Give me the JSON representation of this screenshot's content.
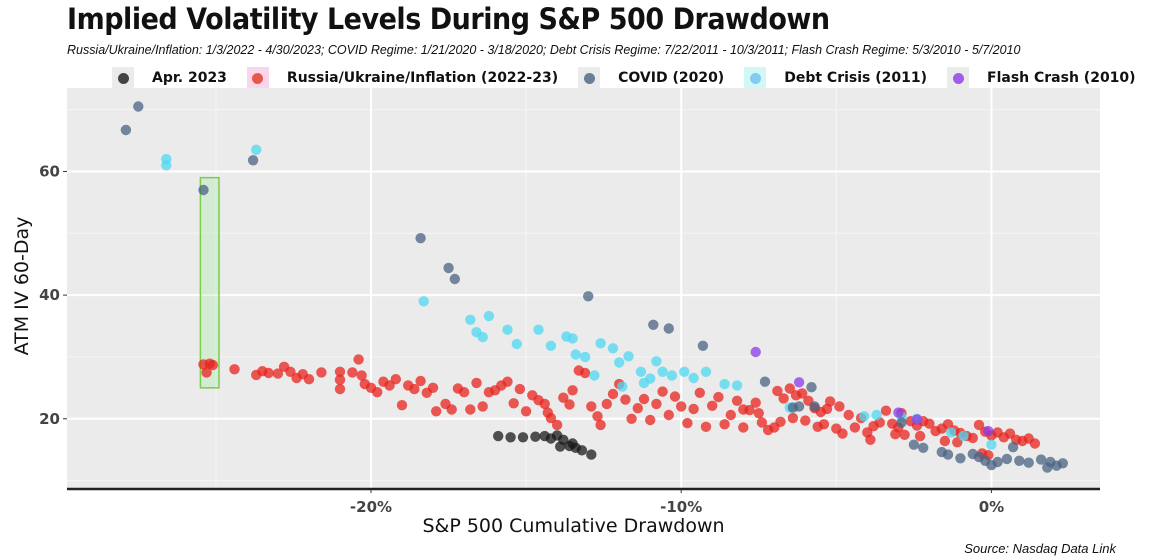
{
  "chart_data": {
    "type": "scatter",
    "title": "Implied Volatility Levels During S&P 500 Drawdown",
    "subtitle": "Russia/Ukraine/Inflation: 1/3/2022 - 4/30/2023; COVID Regime: 1/21/2020 - 3/18/2020; Debt Crisis Regime: 7/22/2011 - 10/3/2011; Flash Crash Regime: 5/3/2010 - 5/7/2010",
    "xlabel": "S&P 500 Cumulative Drawdown",
    "ylabel": "ATM IV 60-Day",
    "source": "Source: Nasdaq Data Link",
    "xlim": [
      -29.8,
      3.5
    ],
    "ylim": [
      8.8,
      73.5
    ],
    "x_ticks": [
      {
        "value": -20,
        "label": "-20%"
      },
      {
        "value": -10,
        "label": "-10%"
      },
      {
        "value": 0,
        "label": "0%"
      }
    ],
    "y_ticks": [
      {
        "value": 20,
        "label": "20"
      },
      {
        "value": 40,
        "label": "40"
      },
      {
        "value": 60,
        "label": "60"
      }
    ],
    "grid": true,
    "legend_position": "top",
    "highlight_box": {
      "x_range": [
        -25.5,
        -24.9
      ],
      "y_range": [
        25,
        59
      ],
      "color": "#7ccd4a"
    },
    "series": [
      {
        "name": "Russia/Ukraine/Inflation (2022-23)",
        "color": "#e8231e",
        "points": [
          [
            -25.4,
            28.8
          ],
          [
            -25.1,
            28.7
          ],
          [
            -25.3,
            27.5
          ],
          [
            -25.2,
            28.9
          ],
          [
            -24.4,
            28.0
          ],
          [
            -23.7,
            27.1
          ],
          [
            -23.5,
            27.7
          ],
          [
            -23.3,
            27.4
          ],
          [
            -23.0,
            27.3
          ],
          [
            -22.8,
            28.4
          ],
          [
            -22.6,
            27.6
          ],
          [
            -22.4,
            26.6
          ],
          [
            -22.2,
            27.2
          ],
          [
            -22.0,
            26.4
          ],
          [
            -21.6,
            27.5
          ],
          [
            -21.0,
            27.6
          ],
          [
            -21.0,
            26.3
          ],
          [
            -21.0,
            24.8
          ],
          [
            -20.6,
            27.5
          ],
          [
            -20.4,
            29.6
          ],
          [
            -20.3,
            27.0
          ],
          [
            -20.2,
            25.6
          ],
          [
            -20.0,
            25.0
          ],
          [
            -19.8,
            24.3
          ],
          [
            -19.6,
            26.0
          ],
          [
            -19.4,
            25.4
          ],
          [
            -19.2,
            26.4
          ],
          [
            -19.0,
            22.2
          ],
          [
            -18.8,
            25.4
          ],
          [
            -18.6,
            24.8
          ],
          [
            -18.4,
            26.1
          ],
          [
            -18.2,
            24.2
          ],
          [
            -18.0,
            25.0
          ],
          [
            -17.9,
            21.2
          ],
          [
            -17.6,
            22.4
          ],
          [
            -17.4,
            21.5
          ],
          [
            -17.2,
            24.9
          ],
          [
            -17.0,
            24.3
          ],
          [
            -16.8,
            21.5
          ],
          [
            -16.6,
            25.8
          ],
          [
            -16.4,
            22.0
          ],
          [
            -16.2,
            24.3
          ],
          [
            -16.0,
            24.6
          ],
          [
            -15.8,
            25.4
          ],
          [
            -15.6,
            26.0
          ],
          [
            -15.4,
            22.5
          ],
          [
            -15.2,
            24.8
          ],
          [
            -15.0,
            21.2
          ],
          [
            -14.8,
            23.8
          ],
          [
            -14.6,
            23.0
          ],
          [
            -14.4,
            22.4
          ],
          [
            -14.3,
            21.0
          ],
          [
            -14.2,
            20.1
          ],
          [
            -14.0,
            19.0
          ],
          [
            -13.8,
            23.4
          ],
          [
            -13.6,
            22.3
          ],
          [
            -13.5,
            24.6
          ],
          [
            -13.3,
            27.8
          ],
          [
            -13.1,
            27.4
          ],
          [
            -12.9,
            22.0
          ],
          [
            -12.7,
            20.4
          ],
          [
            -12.6,
            19.0
          ],
          [
            -12.4,
            22.4
          ],
          [
            -12.2,
            24.0
          ],
          [
            -12.0,
            25.6
          ],
          [
            -11.8,
            23.1
          ],
          [
            -11.6,
            20.0
          ],
          [
            -11.4,
            21.7
          ],
          [
            -11.2,
            23.2
          ],
          [
            -11.0,
            19.8
          ],
          [
            -10.8,
            22.4
          ],
          [
            -10.6,
            24.4
          ],
          [
            -10.4,
            20.6
          ],
          [
            -10.2,
            23.6
          ],
          [
            -10.0,
            22.0
          ],
          [
            -9.8,
            19.3
          ],
          [
            -9.6,
            21.6
          ],
          [
            -9.4,
            24.2
          ],
          [
            -9.2,
            18.7
          ],
          [
            -9.0,
            22.1
          ],
          [
            -8.8,
            23.5
          ],
          [
            -8.6,
            19.1
          ],
          [
            -8.4,
            20.6
          ],
          [
            -8.2,
            22.9
          ],
          [
            -8.0,
            18.6
          ],
          [
            -7.8,
            21.4
          ],
          [
            -7.6,
            22.6
          ],
          [
            -7.4,
            19.4
          ],
          [
            -7.2,
            18.2
          ],
          [
            -6.9,
            24.5
          ],
          [
            -6.7,
            23.3
          ],
          [
            -6.5,
            24.9
          ],
          [
            -6.3,
            23.8
          ],
          [
            -6.1,
            24.1
          ],
          [
            -5.9,
            22.9
          ],
          [
            -5.7,
            21.7
          ],
          [
            -5.5,
            21.1
          ],
          [
            -5.3,
            21.6
          ],
          [
            -5.2,
            22.8
          ],
          [
            -5.0,
            18.4
          ],
          [
            -4.9,
            22.0
          ],
          [
            -4.8,
            17.6
          ],
          [
            -4.6,
            20.6
          ],
          [
            -4.4,
            18.6
          ],
          [
            -4.2,
            20.1
          ],
          [
            -4.0,
            17.8
          ],
          [
            -3.8,
            18.8
          ],
          [
            -3.6,
            19.4
          ],
          [
            -3.4,
            21.3
          ],
          [
            -3.2,
            19.2
          ],
          [
            -3.0,
            18.6
          ],
          [
            -2.9,
            20.9
          ],
          [
            -2.8,
            17.4
          ],
          [
            -2.6,
            19.6
          ],
          [
            -2.4,
            18.9
          ],
          [
            -2.2,
            19.6
          ],
          [
            -2.0,
            19.2
          ],
          [
            -1.8,
            18.0
          ],
          [
            -1.6,
            18.4
          ],
          [
            -1.4,
            19.1
          ],
          [
            -1.2,
            18.1
          ],
          [
            -1.0,
            17.7
          ],
          [
            -0.8,
            17.2
          ],
          [
            -0.6,
            16.9
          ],
          [
            -0.4,
            19.0
          ],
          [
            -0.2,
            17.9
          ],
          [
            0.0,
            17.3
          ],
          [
            0.2,
            17.8
          ],
          [
            0.4,
            17.0
          ],
          [
            0.6,
            17.6
          ],
          [
            0.8,
            16.6
          ],
          [
            1.0,
            16.4
          ],
          [
            1.2,
            16.8
          ],
          [
            1.4,
            16.0
          ],
          [
            -8.0,
            21.5
          ],
          [
            -7.5,
            20.9
          ],
          [
            -7.0,
            18.6
          ],
          [
            -6.8,
            19.5
          ],
          [
            -6.4,
            20.1
          ],
          [
            -6.0,
            19.7
          ],
          [
            -5.6,
            18.7
          ],
          [
            -5.4,
            19.1
          ],
          [
            -3.9,
            16.6
          ],
          [
            -3.1,
            17.5
          ],
          [
            -2.3,
            17.2
          ],
          [
            -1.5,
            16.4
          ],
          [
            -1.1,
            16.2
          ],
          [
            -0.3,
            14.4
          ],
          [
            -0.1,
            14.1
          ]
        ]
      },
      {
        "name": "Apr. 2023",
        "color": "#1a1a1a",
        "points": [
          [
            -15.9,
            17.2
          ],
          [
            -15.5,
            17.0
          ],
          [
            -15.1,
            17.0
          ],
          [
            -14.7,
            17.1
          ],
          [
            -14.4,
            17.2
          ],
          [
            -14.2,
            16.8
          ],
          [
            -14.0,
            17.3
          ],
          [
            -13.8,
            16.6
          ],
          [
            -13.6,
            15.6
          ],
          [
            -13.4,
            15.3
          ],
          [
            -13.2,
            14.9
          ],
          [
            -12.9,
            14.2
          ],
          [
            -13.5,
            16.0
          ],
          [
            -13.9,
            15.5
          ]
        ]
      },
      {
        "name": "COVID (2020)",
        "color": "#4a6383",
        "points": [
          [
            -27.9,
            66.7
          ],
          [
            -27.5,
            70.5
          ],
          [
            -25.4,
            57.0
          ],
          [
            -23.8,
            61.8
          ],
          [
            -18.4,
            49.2
          ],
          [
            -17.5,
            44.4
          ],
          [
            -17.3,
            42.6
          ],
          [
            -13.0,
            39.8
          ],
          [
            -10.9,
            35.2
          ],
          [
            -10.4,
            34.6
          ],
          [
            -9.3,
            31.8
          ],
          [
            -7.3,
            26.0
          ],
          [
            -6.4,
            21.8
          ],
          [
            -6.2,
            22.0
          ],
          [
            -5.8,
            25.1
          ],
          [
            -5.7,
            22.0
          ],
          [
            -2.9,
            19.4
          ],
          [
            -2.5,
            15.8
          ],
          [
            -2.2,
            15.3
          ],
          [
            -1.6,
            14.6
          ],
          [
            -1.4,
            14.2
          ],
          [
            -1.0,
            13.6
          ],
          [
            -0.6,
            14.3
          ],
          [
            -0.4,
            13.8
          ],
          [
            0.0,
            12.5
          ],
          [
            0.2,
            13.0
          ],
          [
            0.5,
            13.5
          ],
          [
            0.7,
            15.4
          ],
          [
            0.9,
            13.2
          ],
          [
            1.2,
            12.9
          ],
          [
            1.6,
            13.4
          ],
          [
            1.9,
            13.0
          ],
          [
            2.1,
            12.4
          ],
          [
            2.3,
            12.8
          ],
          [
            1.8,
            12.1
          ],
          [
            -0.2,
            13.2
          ]
        ]
      },
      {
        "name": "Debt Crisis (2011)",
        "color": "#4fd8f2",
        "points": [
          [
            -26.6,
            62.0
          ],
          [
            -26.6,
            61.0
          ],
          [
            -23.7,
            63.5
          ],
          [
            -18.3,
            39.0
          ],
          [
            -16.8,
            36.0
          ],
          [
            -16.2,
            36.6
          ],
          [
            -16.6,
            34.0
          ],
          [
            -16.4,
            33.2
          ],
          [
            -15.6,
            34.4
          ],
          [
            -15.3,
            32.1
          ],
          [
            -14.6,
            34.4
          ],
          [
            -14.2,
            31.8
          ],
          [
            -13.7,
            33.3
          ],
          [
            -13.5,
            33.0
          ],
          [
            -13.1,
            30.0
          ],
          [
            -13.4,
            30.4
          ],
          [
            -12.6,
            32.2
          ],
          [
            -12.2,
            31.4
          ],
          [
            -12.0,
            29.1
          ],
          [
            -11.7,
            30.1
          ],
          [
            -11.3,
            27.6
          ],
          [
            -11.0,
            26.5
          ],
          [
            -11.2,
            25.8
          ],
          [
            -10.8,
            29.3
          ],
          [
            -10.6,
            27.6
          ],
          [
            -10.3,
            27.0
          ],
          [
            -9.9,
            27.6
          ],
          [
            -9.6,
            26.6
          ],
          [
            -9.2,
            27.6
          ],
          [
            -8.6,
            25.6
          ],
          [
            -8.2,
            25.4
          ],
          [
            -6.5,
            21.8
          ],
          [
            -4.1,
            20.4
          ],
          [
            -3.7,
            20.6
          ],
          [
            -2.9,
            20.3
          ],
          [
            -2.4,
            20.0
          ],
          [
            -1.3,
            17.8
          ],
          [
            -0.9,
            17.2
          ],
          [
            0.0,
            15.8
          ],
          [
            -12.8,
            27.0
          ],
          [
            -11.9,
            25.2
          ]
        ]
      },
      {
        "name": "Flash Crash (2010)",
        "color": "#8c3aea",
        "points": [
          [
            -7.6,
            30.8
          ],
          [
            -6.2,
            25.9
          ],
          [
            -3.0,
            21.0
          ],
          [
            -2.4,
            19.9
          ],
          [
            -0.1,
            18.0
          ]
        ]
      }
    ]
  },
  "legend": [
    {
      "label": "Apr. 2023",
      "color": "#1a1a1a"
    },
    {
      "label": "Russia/Ukraine/Inflation (2022-23)",
      "color": "#e8231e"
    },
    {
      "label": "COVID (2020)",
      "color": "#4a6383"
    },
    {
      "label": "Debt Crisis (2011)",
      "color": "#4fd8f2"
    },
    {
      "label": "Flash Crash (2010)",
      "color": "#8c3aea"
    }
  ]
}
